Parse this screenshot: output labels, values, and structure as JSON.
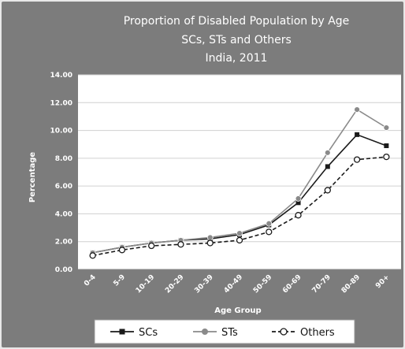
{
  "chart_data": {
    "type": "line",
    "title_lines": [
      "Proportion of Disabled Population by Age",
      "SCs, STs and Others",
      "India, 2011"
    ],
    "xlabel": "Age Group",
    "ylabel": "Percentage",
    "categories": [
      "0-4",
      "5-9",
      "10-19",
      "20-29",
      "30-39",
      "40-49",
      "50-59",
      "60-69",
      "70-79",
      "80-89",
      "90+"
    ],
    "ylim": [
      0,
      14
    ],
    "yticks": [
      "0.00",
      "2.00",
      "4.00",
      "6.00",
      "8.00",
      "10.00",
      "12.00",
      "14.00"
    ],
    "grid": true,
    "legend_position": "bottom",
    "series": [
      {
        "name": "SCs",
        "values": [
          1.2,
          1.6,
          1.9,
          2.1,
          2.2,
          2.5,
          3.2,
          4.8,
          7.4,
          9.7,
          8.9
        ],
        "color": "#1a1a1a",
        "marker": "square",
        "dash": false
      },
      {
        "name": "STs",
        "values": [
          1.2,
          1.6,
          1.9,
          2.1,
          2.3,
          2.6,
          3.3,
          5.1,
          8.4,
          11.5,
          10.2
        ],
        "color": "#8a8a8a",
        "marker": "circle-filled",
        "dash": false
      },
      {
        "name": "Others",
        "values": [
          1.0,
          1.4,
          1.7,
          1.8,
          1.9,
          2.1,
          2.7,
          3.9,
          5.7,
          7.9,
          8.1
        ],
        "color": "#1a1a1a",
        "marker": "circle-open",
        "dash": true
      }
    ]
  },
  "colors": {
    "plot_bg": "#7c7c7c",
    "plot_area": "#ffffff",
    "grid": "#d0d0d0"
  }
}
